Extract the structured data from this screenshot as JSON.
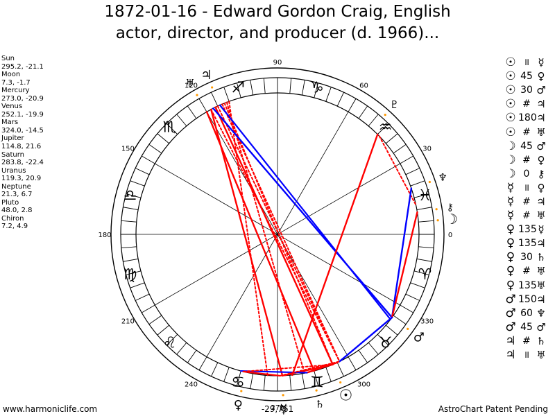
{
  "title": {
    "line1": "1872-01-16 - Edward Gordon Craig, English",
    "line2": "actor, director, and producer (d. 1966)..."
  },
  "planets": [
    {
      "name": "Sun",
      "coords": "295.2, -21.1"
    },
    {
      "name": "Moon",
      "coords": "7.3, -1.7"
    },
    {
      "name": "Mercury",
      "coords": "273.0, -20.9"
    },
    {
      "name": "Venus",
      "coords": "252.1, -19.9"
    },
    {
      "name": "Mars",
      "coords": "324.0, -14.5"
    },
    {
      "name": "Jupiter",
      "coords": "114.8, 21.6"
    },
    {
      "name": "Saturn",
      "coords": "283.8, -22.4"
    },
    {
      "name": "Uranus",
      "coords": "119.3, 20.9"
    },
    {
      "name": "Neptune",
      "coords": "21.3, 6.7"
    },
    {
      "name": "Pluto",
      "coords": "48.0, 2.8"
    },
    {
      "name": "Chiron",
      "coords": "7.2, 4.9"
    }
  ],
  "wheel": {
    "degree_labels": [
      "0",
      "30",
      "60",
      "90",
      "120",
      "150",
      "180",
      "210",
      "240",
      "270",
      "300",
      "330"
    ],
    "sign_glyphs": [
      "♓",
      "♒",
      "♑",
      "♐",
      "♏",
      "♎",
      "♍",
      "♌",
      "♋",
      "♊",
      "♉",
      "♈"
    ],
    "center_value": "-29,761",
    "planet_glyphs": [
      {
        "name": "Sun",
        "glyph": "☉"
      },
      {
        "name": "Moon",
        "glyph": "☽"
      },
      {
        "name": "Mercury",
        "glyph": "☿"
      },
      {
        "name": "Venus",
        "glyph": "♀"
      },
      {
        "name": "Mars",
        "glyph": "♂"
      },
      {
        "name": "Jupiter",
        "glyph": "♃"
      },
      {
        "name": "Saturn",
        "glyph": "♄"
      },
      {
        "name": "Uranus",
        "glyph": "♅"
      },
      {
        "name": "Neptune",
        "glyph": "♆"
      },
      {
        "name": "Pluto",
        "glyph": "♇"
      },
      {
        "name": "Chiron",
        "glyph": "⚷"
      }
    ]
  },
  "aspects": [
    {
      "p1": "☉",
      "aspect": "॥",
      "p2": "☿"
    },
    {
      "p1": "☉",
      "aspect": "45",
      "p2": "♀"
    },
    {
      "p1": "☉",
      "aspect": "30",
      "p2": "♂"
    },
    {
      "p1": "☉",
      "aspect": "#",
      "p2": "♃"
    },
    {
      "p1": "☉",
      "aspect": "180",
      "p2": "♃"
    },
    {
      "p1": "☉",
      "aspect": "#",
      "p2": "♅"
    },
    {
      "p1": "☽",
      "aspect": "45",
      "p2": "♂"
    },
    {
      "p1": "☽",
      "aspect": "#",
      "p2": "♀"
    },
    {
      "p1": "☽",
      "aspect": "0",
      "p2": "⚷"
    },
    {
      "p1": "☿",
      "aspect": "॥",
      "p2": "♀"
    },
    {
      "p1": "☿",
      "aspect": "#",
      "p2": "♃"
    },
    {
      "p1": "☿",
      "aspect": "#",
      "p2": "♅"
    },
    {
      "p1": "♀",
      "aspect": "135",
      "p2": "☿"
    },
    {
      "p1": "♀",
      "aspect": "135",
      "p2": "♃"
    },
    {
      "p1": "♀",
      "aspect": "30",
      "p2": "♄"
    },
    {
      "p1": "♀",
      "aspect": "#",
      "p2": "♅"
    },
    {
      "p1": "♀",
      "aspect": "135",
      "p2": "♅"
    },
    {
      "p1": "♂",
      "aspect": "150",
      "p2": "♃"
    },
    {
      "p1": "♂",
      "aspect": "60",
      "p2": "♆"
    },
    {
      "p1": "♂",
      "aspect": "45",
      "p2": "♂"
    },
    {
      "p1": "♃",
      "aspect": "#",
      "p2": "♄"
    },
    {
      "p1": "♃",
      "aspect": "॥",
      "p2": "♅"
    }
  ],
  "footer": {
    "site": "www.harmoniclife.com",
    "credit": "AstroChart Patent Pending"
  },
  "colors": {
    "aspect_red": "#ff0000",
    "aspect_blue": "#0000ff",
    "marker_orange": "#ff9900"
  }
}
